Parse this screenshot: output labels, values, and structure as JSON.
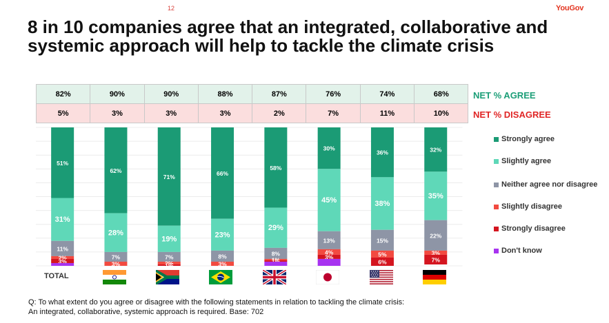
{
  "page_number": "12",
  "logo": "YouGov",
  "title": "8 in 10 companies agree that an integrated, collaborative and systemic approach will help to tackle the climate crisis",
  "net_agree": {
    "label": "NET % AGREE",
    "values": [
      "82%",
      "90%",
      "90%",
      "88%",
      "87%",
      "76%",
      "74%",
      "68%"
    ]
  },
  "net_disagree": {
    "label": "NET % DISAGREE",
    "values": [
      "5%",
      "3%",
      "3%",
      "3%",
      "2%",
      "7%",
      "11%",
      "10%"
    ]
  },
  "total_label": "TOTAL",
  "flags": [
    "india-flag-icon",
    "south-africa-flag-icon",
    "brazil-flag-icon",
    "uk-flag-icon",
    "japan-flag-icon",
    "usa-flag-icon",
    "germany-flag-icon"
  ],
  "colors": {
    "strongly_agree": "#1b9b75",
    "slightly_agree": "#5fd8b8",
    "neither": "#8e95a6",
    "slightly_disagree": "#f24a40",
    "strongly_disagree": "#d4151f",
    "dont_know": "#a733f0",
    "net_agree": "#1b9e77",
    "net_disagree": "#e02525"
  },
  "chart_data": {
    "type": "bar",
    "stacked": true,
    "categories": [
      "TOTAL",
      "India",
      "South Africa",
      "Brazil",
      "UK",
      "Japan",
      "USA",
      "Germany"
    ],
    "series": [
      {
        "name": "Strongly agree",
        "values": [
          51,
          62,
          71,
          66,
          58,
          30,
          36,
          32
        ]
      },
      {
        "name": "Slightly agree",
        "values": [
          31,
          28,
          19,
          23,
          29,
          45,
          38,
          35
        ]
      },
      {
        "name": "Neither agree nor disagree",
        "values": [
          11,
          7,
          7,
          8,
          8,
          13,
          15,
          22
        ]
      },
      {
        "name": "Slightly disagree",
        "values": [
          2,
          3,
          2,
          3,
          1,
          4,
          5,
          3
        ]
      },
      {
        "name": "Strongly disagree",
        "values": [
          3,
          0,
          1,
          0,
          1,
          3,
          6,
          7
        ]
      },
      {
        "name": "Don't know",
        "values": [
          2,
          0,
          0,
          0,
          3,
          5,
          0,
          0
        ]
      }
    ],
    "data_labels": [
      [
        "51%",
        "31%",
        "11%",
        "2%",
        "3%",
        ""
      ],
      [
        "62%",
        "28%",
        "7%",
        "3%",
        "",
        ""
      ],
      [
        "71%",
        "19%",
        "7%",
        "2%",
        "1%",
        ""
      ],
      [
        "66%",
        "23%",
        "8%",
        "3%",
        "",
        ""
      ],
      [
        "58%",
        "29%",
        "8%",
        "1%",
        "1%",
        ""
      ],
      [
        "30%",
        "45%",
        "13%",
        "4%",
        "3%",
        ""
      ],
      [
        "36%",
        "38%",
        "15%",
        "5%",
        "6%",
        ""
      ],
      [
        "32%",
        "35%",
        "22%",
        "3%",
        "7%",
        ""
      ]
    ],
    "ylim": [
      0,
      100
    ],
    "grid": true,
    "legend_position": "right"
  },
  "footnote": {
    "line1": "Q: To what extent do you agree or disagree with the following statements in relation to tackling the climate crisis:",
    "line2": "An integrated, collaborative, systemic approach is required. Base: 702"
  }
}
